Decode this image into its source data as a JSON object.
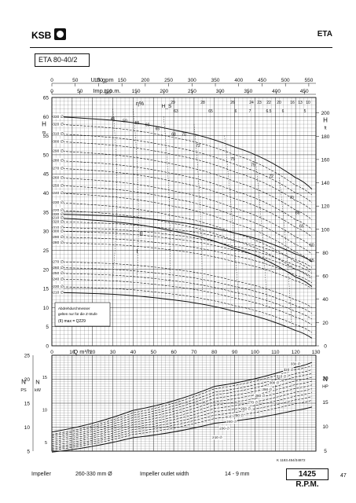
{
  "header": {
    "brand": "KSB",
    "series": "ETA"
  },
  "model": "ETA 80-40/2",
  "footer": {
    "impeller_label": "Impeller",
    "impeller_range": "260-330 mm Ø",
    "outlet_label": "Impeller outlet width",
    "outlet_value": "14 - 9 mm",
    "rpm": "1425 R.P.M.",
    "page": "47",
    "ref": "K 1183.454/34872"
  },
  "annotation": {
    "line1": "Abdrehdurchmesser",
    "line2": "gelten nur für die Z-Stufe",
    "line3": "(II) max = Q229"
  },
  "chart_data": [
    {
      "type": "line",
      "title": "H-Q",
      "x_axes": {
        "usgpm": {
          "label": "U.S.gpm",
          "ticks": [
            0,
            50,
            100,
            150,
            200,
            250,
            300,
            350,
            400,
            450,
            500,
            550
          ]
        },
        "impgpm": {
          "label": "Imp.g.p.m.",
          "ticks": [
            0,
            50,
            100,
            150,
            200,
            250,
            300,
            350,
            400,
            450
          ]
        },
        "efficiency_label": "η%",
        "npsh_label": "H_S",
        "npsh_ticks": [
          "29",
          "28",
          "26",
          "24",
          "23",
          "22",
          "20",
          "16",
          "13",
          "10"
        ],
        "npsh_ticks_ft": [
          "63",
          "65",
          "6",
          "7",
          "6.5",
          "6",
          "5"
        ]
      },
      "ylabel_left": "H m",
      "ylabel_right": "H ft",
      "ylim_m": [
        0,
        65
      ],
      "ylim_ft": [
        0,
        200
      ],
      "yticks_m": [
        0,
        5,
        10,
        15,
        20,
        25,
        30,
        35,
        40,
        45,
        50,
        55,
        60,
        65
      ],
      "yticks_ft": [
        0,
        20,
        40,
        60,
        80,
        100,
        120,
        140,
        160,
        180,
        200
      ],
      "xlabel": "Q m³/h",
      "xlim": [
        0,
        130
      ],
      "xticks": [
        0,
        10,
        20,
        30,
        40,
        50,
        60,
        70,
        80,
        90,
        100,
        110,
        120,
        130
      ],
      "stages": [
        "II",
        "I"
      ],
      "series": [
        {
          "name": "330",
          "stage": "II",
          "x": [
            0,
            30,
            60,
            90,
            120,
            128
          ],
          "y": [
            60,
            59,
            56.5,
            52,
            44,
            41
          ]
        },
        {
          "name": "320",
          "stage": "II",
          "x": [
            0,
            30,
            60,
            90,
            120,
            128
          ],
          "y": [
            58,
            57,
            54.5,
            50,
            42,
            39.5
          ]
        },
        {
          "name": "310",
          "stage": "II",
          "x": [
            0,
            30,
            60,
            90,
            120,
            128
          ],
          "y": [
            55.5,
            54.5,
            52,
            47.5,
            40,
            37.5
          ]
        },
        {
          "name": "300",
          "stage": "II",
          "x": [
            0,
            30,
            60,
            90,
            120,
            128
          ],
          "y": [
            53.5,
            52.5,
            50,
            45.5,
            38,
            35.5
          ]
        },
        {
          "name": "290",
          "stage": "II",
          "x": [
            0,
            30,
            60,
            90,
            120,
            128
          ],
          "y": [
            51,
            50,
            47.5,
            43,
            35.5,
            33
          ]
        },
        {
          "name": "280",
          "stage": "II",
          "x": [
            0,
            30,
            60,
            90,
            120,
            128
          ],
          "y": [
            48.5,
            47.5,
            45,
            40.5,
            33,
            30.5
          ]
        },
        {
          "name": "270",
          "stage": "II",
          "x": [
            0,
            30,
            60,
            90,
            120,
            128
          ],
          "y": [
            46.5,
            45.5,
            43,
            38.5,
            31,
            28.5
          ]
        },
        {
          "name": "260",
          "stage": "II",
          "x": [
            0,
            30,
            60,
            90,
            120,
            128
          ],
          "y": [
            44,
            43,
            40.5,
            36,
            28.5,
            26
          ]
        },
        {
          "name": "250",
          "stage": "II",
          "x": [
            0,
            30,
            60,
            90,
            120,
            128
          ],
          "y": [
            42,
            41,
            38.5,
            34,
            26.5,
            24
          ]
        },
        {
          "name": "240",
          "stage": "II",
          "x": [
            0,
            30,
            60,
            90,
            120,
            128
          ],
          "y": [
            40,
            39,
            36.5,
            32,
            24.5,
            22
          ]
        },
        {
          "name": "230",
          "stage": "II",
          "x": [
            0,
            30,
            60,
            90,
            120,
            128
          ],
          "y": [
            37.5,
            36.5,
            34,
            29.5,
            22,
            19.5
          ]
        },
        {
          "name": "220",
          "stage": "II",
          "x": [
            0,
            30,
            60,
            90,
            120,
            128
          ],
          "y": [
            35.5,
            34.5,
            32,
            27.5,
            20,
            17.5
          ]
        },
        {
          "name": "210",
          "stage": "II",
          "x": [
            0,
            30,
            60,
            90,
            120,
            128
          ],
          "y": [
            33.5,
            32.5,
            30,
            25.5,
            18,
            15.5
          ]
        },
        {
          "name": "330",
          "stage": "I",
          "x": [
            0,
            30,
            60,
            90,
            120,
            128
          ],
          "y": [
            34.5,
            34,
            32.5,
            29.5,
            24,
            22
          ]
        },
        {
          "name": "320",
          "stage": "I",
          "x": [
            0,
            30,
            60,
            90,
            120,
            128
          ],
          "y": [
            32.5,
            32,
            30.5,
            27.5,
            22.5,
            20.5
          ]
        },
        {
          "name": "310",
          "stage": "I",
          "x": [
            0,
            30,
            60,
            90,
            120,
            128
          ],
          "y": [
            31,
            30.5,
            29,
            26,
            21,
            19
          ]
        },
        {
          "name": "300",
          "stage": "I",
          "x": [
            0,
            30,
            60,
            90,
            120,
            128
          ],
          "y": [
            30,
            29.5,
            28,
            25,
            20,
            18
          ]
        },
        {
          "name": "290",
          "stage": "I",
          "x": [
            0,
            30,
            60,
            90,
            120,
            128
          ],
          "y": [
            28.5,
            28,
            26.5,
            23.5,
            18.5,
            16.5
          ]
        },
        {
          "name": "280",
          "stage": "I",
          "x": [
            0,
            30,
            60,
            90,
            120,
            128
          ],
          "y": [
            27,
            26.5,
            25,
            22,
            17,
            15
          ]
        },
        {
          "name": "270",
          "stage": "I",
          "x": [
            0,
            30,
            60,
            90,
            120,
            128
          ],
          "y": [
            22,
            21.5,
            20,
            17,
            12,
            10
          ]
        },
        {
          "name": "260",
          "stage": "I",
          "x": [
            0,
            30,
            60,
            90,
            120,
            128
          ],
          "y": [
            20.5,
            20,
            18.5,
            15.5,
            10.5,
            8.5
          ]
        },
        {
          "name": "250",
          "stage": "I",
          "x": [
            0,
            30,
            60,
            90,
            120,
            128
          ],
          "y": [
            19,
            18.5,
            17,
            14,
            9,
            7
          ]
        },
        {
          "name": "240",
          "stage": "I",
          "x": [
            0,
            30,
            60,
            90,
            120,
            128
          ],
          "y": [
            17.5,
            17,
            15.5,
            12.5,
            7.5,
            5.5
          ]
        },
        {
          "name": "230",
          "stage": "I",
          "x": [
            0,
            30,
            60,
            90,
            120,
            128
          ],
          "y": [
            15.5,
            15,
            13.5,
            10.5,
            5.5,
            3.5
          ]
        },
        {
          "name": "210",
          "stage": "I",
          "x": [
            0,
            30,
            60,
            90,
            120,
            128
          ],
          "y": [
            14,
            13.5,
            12,
            9,
            4,
            2
          ]
        }
      ],
      "efficiency_labels": [
        "45",
        "50",
        "55",
        "60",
        "65",
        "68",
        "70",
        "72",
        "75",
        "75",
        "72",
        "70",
        "68",
        "65",
        "60",
        "55"
      ]
    },
    {
      "type": "line",
      "title": "N-Q",
      "ylabel_left": "N PS",
      "ylabel_left2": "N kW",
      "ylabel_right": "N HP",
      "ylim_ps": [
        5,
        25
      ],
      "yticks_ps": [
        5,
        10,
        15,
        20,
        25
      ],
      "yticks_kw": [
        5,
        10,
        15
      ],
      "yticks_hp": [
        5,
        10,
        15,
        20
      ],
      "xlim": [
        0,
        130
      ],
      "series": [
        {
          "name": "330",
          "x": [
            0,
            40,
            80,
            120,
            128
          ],
          "y": [
            9,
            13.5,
            18.5,
            22.5,
            23.5
          ]
        },
        {
          "name": "320",
          "x": [
            0,
            40,
            80,
            120,
            128
          ],
          "y": [
            8.5,
            13,
            18,
            22,
            22.8
          ]
        },
        {
          "name": "310",
          "x": [
            0,
            40,
            80,
            120,
            128
          ],
          "y": [
            8.2,
            12.5,
            17.3,
            21.2,
            22
          ]
        },
        {
          "name": "300",
          "x": [
            0,
            40,
            80,
            120,
            128
          ],
          "y": [
            7.8,
            12,
            16.7,
            20.5,
            21.2
          ]
        },
        {
          "name": "290",
          "x": [
            0,
            40,
            80,
            120,
            128
          ],
          "y": [
            7.4,
            11.5,
            16,
            19.7,
            20.4
          ]
        },
        {
          "name": "280",
          "x": [
            0,
            40,
            80,
            120,
            128
          ],
          "y": [
            7,
            11,
            15.3,
            18.9,
            19.6
          ]
        },
        {
          "name": "270",
          "x": [
            0,
            40,
            80,
            120,
            128
          ],
          "y": [
            6.6,
            10.5,
            14.6,
            18.1,
            18.8
          ]
        },
        {
          "name": "260",
          "x": [
            0,
            40,
            80,
            120,
            128
          ],
          "y": [
            6.2,
            10,
            13.9,
            17.3,
            18
          ]
        },
        {
          "name": "250",
          "x": [
            0,
            40,
            80,
            120,
            128
          ],
          "y": [
            5.8,
            9.5,
            13.2,
            16.5,
            17.2
          ]
        },
        {
          "name": "240",
          "x": [
            0,
            40,
            80,
            120,
            128
          ],
          "y": [
            5.5,
            9,
            12.5,
            15.7,
            16.4
          ]
        },
        {
          "name": "230",
          "x": [
            0,
            40,
            80,
            120,
            128
          ],
          "y": [
            5.2,
            8.5,
            11.8,
            14.9,
            15.6
          ]
        },
        {
          "name": "210",
          "x": [
            0,
            40,
            80,
            120,
            128
          ],
          "y": [
            4.8,
            7.8,
            10.8,
            13.5,
            14.2
          ]
        }
      ]
    }
  ]
}
